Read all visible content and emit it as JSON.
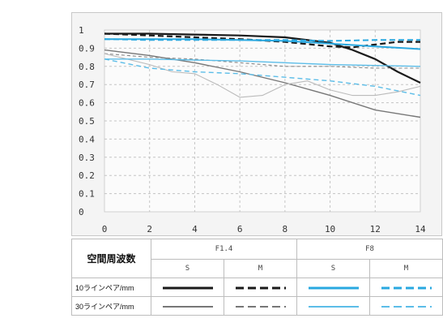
{
  "chart_data": {
    "type": "line",
    "xlim": [
      0,
      14
    ],
    "ylim": [
      0,
      1
    ],
    "x_ticks": [
      "0",
      "2",
      "4",
      "6",
      "8",
      "10",
      "12",
      "14"
    ],
    "y_ticks": [
      "1",
      "0.9",
      "0.8",
      "0.7",
      "0.6",
      "0.5",
      "0.4",
      "0.3",
      "0.2",
      "0.1",
      "0"
    ],
    "grid": true,
    "series": [
      {
        "color": "#1a1a1a",
        "width": 2.2,
        "dash": "",
        "x": [
          0,
          2,
          4,
          6,
          8,
          10,
          11,
          12,
          13,
          14
        ],
        "y": [
          0.98,
          0.98,
          0.975,
          0.97,
          0.96,
          0.93,
          0.89,
          0.84,
          0.77,
          0.71
        ]
      },
      {
        "color": "#1a1a1a",
        "width": 2.2,
        "dash": "7,4",
        "x": [
          0,
          2,
          4,
          6,
          8,
          10,
          11,
          12,
          13,
          14
        ],
        "y": [
          0.98,
          0.97,
          0.96,
          0.95,
          0.935,
          0.91,
          0.905,
          0.92,
          0.935,
          0.935
        ]
      },
      {
        "color": "#777777",
        "width": 1.4,
        "dash": "",
        "x": [
          0,
          2,
          4,
          6,
          8,
          10,
          12,
          14
        ],
        "y": [
          0.89,
          0.86,
          0.82,
          0.77,
          0.71,
          0.64,
          0.56,
          0.52
        ]
      },
      {
        "color": "#888888",
        "width": 1.1,
        "dash": "4,3",
        "x": [
          0,
          2,
          4,
          6,
          8,
          10,
          12,
          14
        ],
        "y": [
          0.87,
          0.85,
          0.84,
          0.82,
          0.8,
          0.8,
          0.79,
          0.79
        ]
      },
      {
        "color": "#bbbbbb",
        "width": 1.1,
        "dash": "",
        "x": [
          0,
          1,
          2,
          3,
          4,
          5,
          6,
          7,
          8,
          9,
          10,
          11,
          12,
          13,
          14
        ],
        "y": [
          0.87,
          0.84,
          0.81,
          0.77,
          0.76,
          0.7,
          0.63,
          0.64,
          0.7,
          0.72,
          0.67,
          0.64,
          0.64,
          0.66,
          0.69
        ]
      },
      {
        "color": "#29a8e0",
        "width": 2.0,
        "dash": "",
        "x": [
          0,
          2,
          4,
          6,
          8,
          10,
          12,
          14
        ],
        "y": [
          0.95,
          0.95,
          0.95,
          0.945,
          0.94,
          0.925,
          0.91,
          0.895
        ]
      },
      {
        "color": "#29a8e0",
        "width": 2.0,
        "dash": "7,4",
        "x": [
          0,
          2,
          4,
          6,
          8,
          10,
          12,
          14
        ],
        "y": [
          0.95,
          0.945,
          0.945,
          0.945,
          0.945,
          0.94,
          0.945,
          0.945
        ]
      },
      {
        "color": "#5cbde8",
        "width": 1.4,
        "dash": "",
        "x": [
          0,
          2,
          4,
          6,
          8,
          10,
          12,
          14
        ],
        "y": [
          0.84,
          0.84,
          0.835,
          0.83,
          0.82,
          0.81,
          0.805,
          0.8
        ]
      },
      {
        "color": "#5cbde8",
        "width": 1.4,
        "dash": "6,4",
        "x": [
          0,
          2,
          4,
          6,
          8,
          10,
          12,
          14
        ],
        "y": [
          0.84,
          0.79,
          0.77,
          0.76,
          0.74,
          0.72,
          0.69,
          0.64
        ]
      }
    ]
  },
  "legend": {
    "header_label": "空間周波数",
    "apertures": [
      "F1.4",
      "F8"
    ],
    "sub_labels": [
      "S",
      "M",
      "S",
      "M"
    ],
    "rows": [
      {
        "label": "10ラインペア/mm",
        "samples": [
          {
            "color": "#1a1a1a",
            "dash": "",
            "width": 3
          },
          {
            "color": "#1a1a1a",
            "dash": "10,5",
            "width": 3
          },
          {
            "color": "#29a8e0",
            "dash": "",
            "width": 3
          },
          {
            "color": "#29a8e0",
            "dash": "10,5",
            "width": 3
          }
        ]
      },
      {
        "label": "30ラインペア/mm",
        "samples": [
          {
            "color": "#777777",
            "dash": "",
            "width": 2
          },
          {
            "color": "#777777",
            "dash": "10,5",
            "width": 2
          },
          {
            "color": "#5cbde8",
            "dash": "",
            "width": 2
          },
          {
            "color": "#5cbde8",
            "dash": "10,5",
            "width": 2
          }
        ]
      }
    ]
  }
}
